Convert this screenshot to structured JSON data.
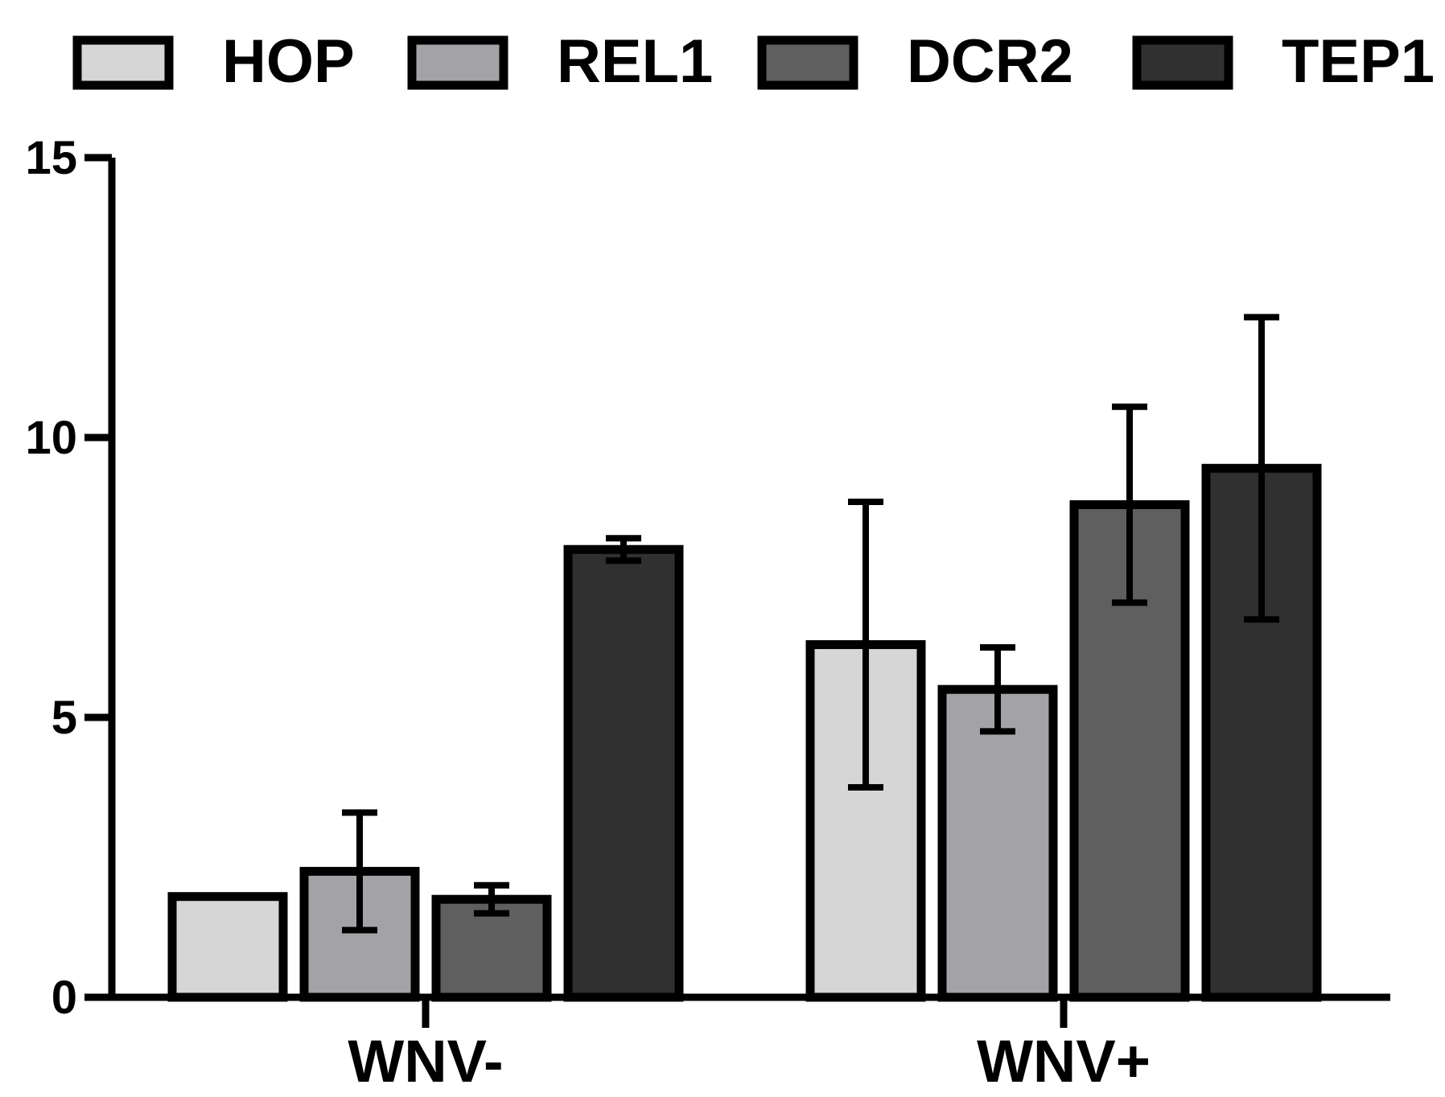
{
  "chart_data": {
    "type": "bar",
    "title": "",
    "xlabel": "",
    "ylabel": "",
    "ylim": [
      0,
      15
    ],
    "yticks": [
      "0",
      "5",
      "10",
      "15"
    ],
    "categories": [
      "WNV-",
      "WNV+"
    ],
    "series": [
      {
        "name": "HOP",
        "color": "#d6d6d6",
        "values": [
          1.8,
          6.3
        ],
        "error": [
          0,
          2.55
        ]
      },
      {
        "name": "REL1",
        "color": "#a3a3a7",
        "values": [
          2.25,
          5.5
        ],
        "error": [
          1.05,
          0.75
        ]
      },
      {
        "name": "DCR2",
        "color": "#5f5f5f",
        "values": [
          1.75,
          8.8
        ],
        "error": [
          0.25,
          1.75
        ]
      },
      {
        "name": "TEP1",
        "color": "#303030",
        "values": [
          8.0,
          9.45
        ],
        "error": [
          0.2,
          2.7
        ]
      }
    ],
    "grid": false,
    "legend_position": "top"
  }
}
